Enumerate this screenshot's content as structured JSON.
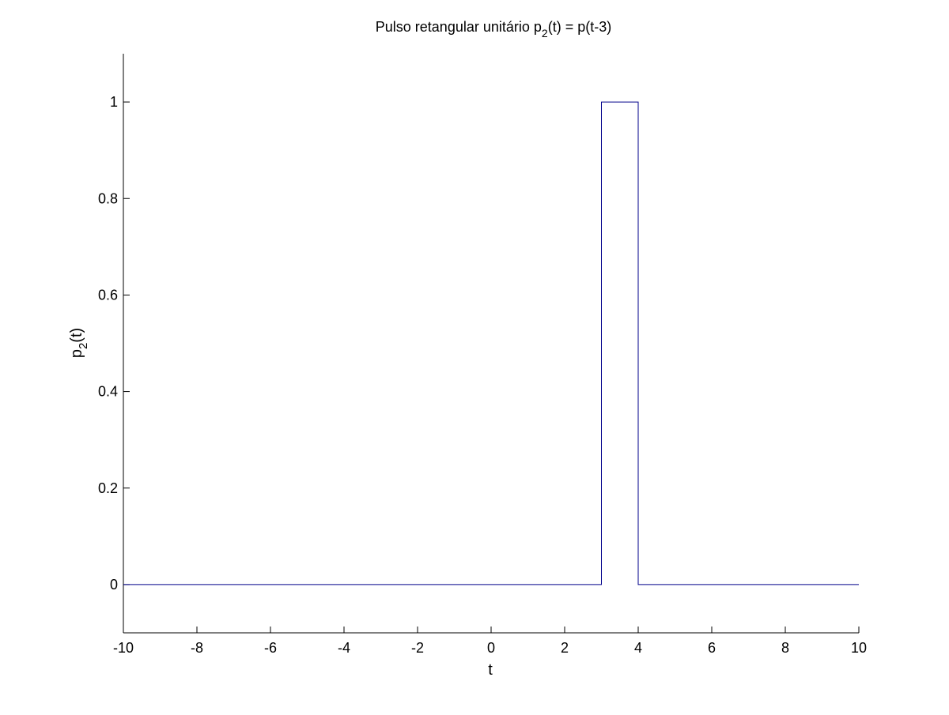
{
  "chart_data": {
    "type": "line",
    "title": {
      "prefix": "Pulso retangular unitário p",
      "subscript": "2",
      "suffix": "(t) = p(t-3)"
    },
    "xlabel": "t",
    "ylabel": {
      "prefix": "p",
      "subscript": "2",
      "suffix": "(t)"
    },
    "xlim": [
      -10,
      10
    ],
    "ylim": [
      -0.1,
      1.1
    ],
    "x_ticks": [
      -10,
      -8,
      -6,
      -4,
      -2,
      0,
      2,
      4,
      6,
      8,
      10
    ],
    "y_ticks": [
      0,
      0.2,
      0.4,
      0.6,
      0.8,
      1
    ],
    "grid": false,
    "series": [
      {
        "color": "#00008b",
        "points": [
          {
            "x": -10,
            "y": 0
          },
          {
            "x": 3,
            "y": 0
          },
          {
            "x": 3,
            "y": 1
          },
          {
            "x": 4,
            "y": 1
          },
          {
            "x": 4,
            "y": 0
          },
          {
            "x": 10,
            "y": 0
          }
        ]
      }
    ]
  }
}
